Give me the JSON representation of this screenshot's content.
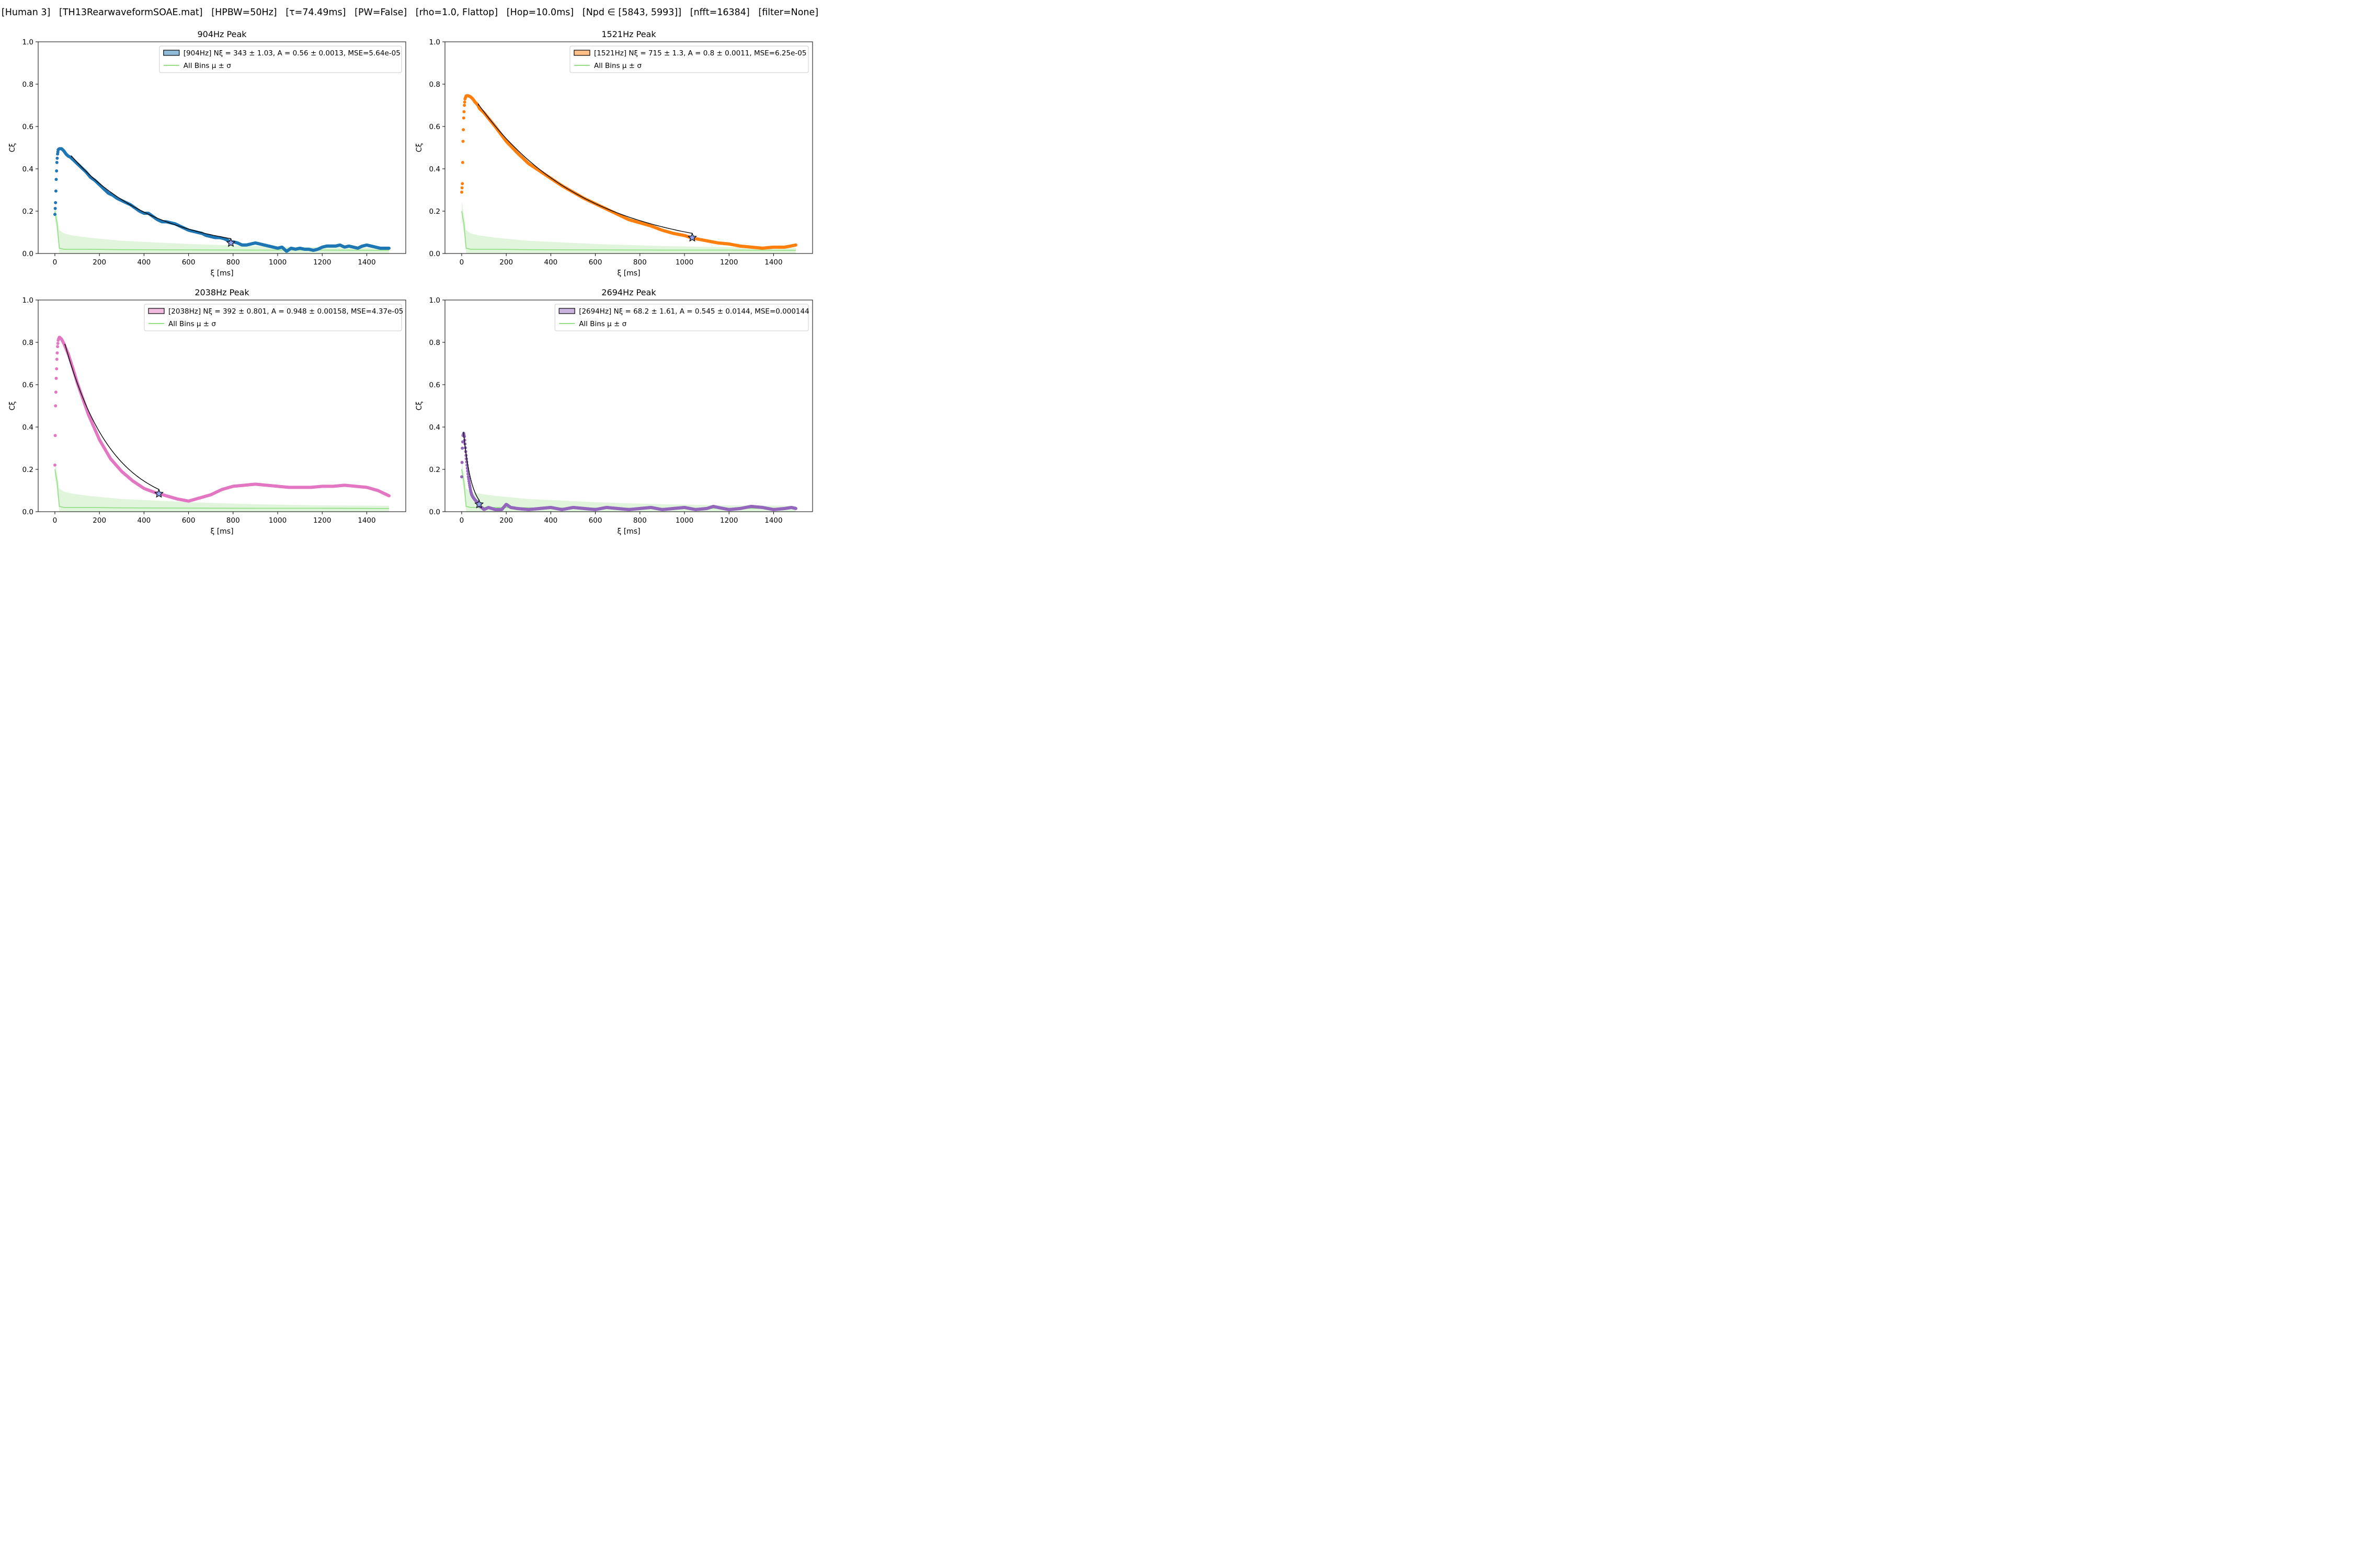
{
  "header": {
    "suptitle": "[Human 3]   [TH13RearwaveformSOAE.mat]   [HPBW=50Hz]   [τ=74.49ms]   [PW=False]   [rho=1.0, Flattop]   [Hop=10.0ms]   [Npd ∈ [5843, 5993]]   [nfft=16384]   [filter=None]"
  },
  "chart_data": [
    {
      "type": "scatter",
      "title": "904Hz Peak",
      "xlabel": "ξ [ms]",
      "ylabel": "Cξ",
      "xlim": [
        -75,
        1575
      ],
      "ylim": [
        0,
        1.0
      ],
      "xticks": [
        0,
        200,
        400,
        600,
        800,
        1000,
        1200,
        1400
      ],
      "yticks": [
        0.0,
        0.2,
        0.4,
        0.6,
        0.8,
        1.0
      ],
      "grid": false,
      "legend_placement": "top-right",
      "series": [
        {
          "name": "[904Hz] Nξ = 343 ± 1.03, A = 0.56 ± 0.0013, MSE=5.64e-05",
          "color": "#1f77b4",
          "fill_color": "#8fbbd9",
          "x": [
            0,
            3,
            6,
            9,
            12,
            15,
            20,
            30,
            40,
            50,
            60,
            70,
            80,
            100,
            120,
            140,
            160,
            180,
            200,
            220,
            240,
            260,
            280,
            300,
            320,
            340,
            360,
            380,
            400,
            420,
            440,
            460,
            480,
            500,
            520,
            540,
            560,
            580,
            600,
            620,
            640,
            660,
            680,
            700,
            720,
            740,
            760,
            780,
            790,
            800,
            820,
            840,
            860,
            880,
            900,
            920,
            940,
            960,
            980,
            1000,
            1020,
            1040,
            1060,
            1080,
            1100,
            1120,
            1140,
            1160,
            1180,
            1200,
            1220,
            1240,
            1260,
            1280,
            1300,
            1320,
            1340,
            1360,
            1380,
            1400,
            1420,
            1440,
            1460,
            1480,
            1500
          ],
          "values": [
            0.185,
            0.24,
            0.35,
            0.43,
            0.47,
            0.49,
            0.495,
            0.495,
            0.485,
            0.47,
            0.46,
            0.455,
            0.445,
            0.425,
            0.405,
            0.385,
            0.36,
            0.345,
            0.325,
            0.305,
            0.285,
            0.275,
            0.26,
            0.25,
            0.24,
            0.23,
            0.215,
            0.2,
            0.19,
            0.19,
            0.175,
            0.16,
            0.15,
            0.15,
            0.145,
            0.14,
            0.13,
            0.12,
            0.11,
            0.105,
            0.1,
            0.095,
            0.085,
            0.08,
            0.075,
            0.075,
            0.07,
            0.06,
            0.05,
            0.055,
            0.05,
            0.04,
            0.04,
            0.045,
            0.05,
            0.045,
            0.04,
            0.035,
            0.03,
            0.025,
            0.03,
            0.01,
            0.025,
            0.02,
            0.025,
            0.02,
            0.02,
            0.015,
            0.02,
            0.03,
            0.035,
            0.035,
            0.035,
            0.04,
            0.03,
            0.035,
            0.03,
            0.025,
            0.035,
            0.04,
            0.035,
            0.03,
            0.025,
            0.025,
            0.025
          ]
        },
        {
          "name": "All Bins μ ± σ",
          "color": "#98df8a",
          "x": [
            0,
            10,
            20,
            40,
            80,
            150,
            300,
            600,
            900,
            1200,
            1500
          ],
          "values": [
            0.2,
            0.14,
            0.025,
            0.02,
            0.02,
            0.02,
            0.018,
            0.017,
            0.016,
            0.016,
            0.015
          ],
          "upper": [
            0.245,
            0.18,
            0.11,
            0.095,
            0.085,
            0.075,
            0.06,
            0.045,
            0.035,
            0.03,
            0.028
          ],
          "lower": [
            0.16,
            0.1,
            0.0,
            0.0,
            0.0,
            0.0,
            0.0,
            0.0,
            0.0,
            0.0,
            0.0
          ]
        }
      ],
      "fit": {
        "x_start": 75,
        "x_end": 790,
        "amplitude": 0.56,
        "n_xi": 343,
        "tau_ms": 74.49
      },
      "star": {
        "x": 790,
        "y": 0.05
      }
    },
    {
      "type": "scatter",
      "title": "1521Hz Peak",
      "xlabel": "ξ [ms]",
      "ylabel": "Cξ",
      "xlim": [
        -75,
        1575
      ],
      "ylim": [
        0,
        1.0
      ],
      "xticks": [
        0,
        200,
        400,
        600,
        800,
        1000,
        1200,
        1400
      ],
      "yticks": [
        0.0,
        0.2,
        0.4,
        0.6,
        0.8,
        1.0
      ],
      "grid": false,
      "legend_placement": "top-right",
      "series": [
        {
          "name": "[1521Hz] Nξ = 715 ± 1.3, A = 0.8 ± 0.0011, MSE=6.25e-05",
          "color": "#ff7f0e",
          "fill_color": "#ffbf86",
          "x": [
            0,
            3,
            6,
            9,
            12,
            15,
            20,
            30,
            40,
            50,
            60,
            70,
            80,
            100,
            150,
            200,
            250,
            300,
            350,
            400,
            450,
            500,
            550,
            600,
            650,
            700,
            750,
            800,
            850,
            900,
            950,
            1000,
            1030,
            1050,
            1100,
            1150,
            1200,
            1250,
            1300,
            1350,
            1400,
            1450,
            1500
          ],
          "values": [
            0.29,
            0.33,
            0.53,
            0.64,
            0.7,
            0.73,
            0.745,
            0.745,
            0.74,
            0.73,
            0.715,
            0.705,
            0.685,
            0.665,
            0.6,
            0.53,
            0.475,
            0.425,
            0.39,
            0.355,
            0.32,
            0.29,
            0.26,
            0.235,
            0.21,
            0.185,
            0.16,
            0.145,
            0.13,
            0.11,
            0.095,
            0.085,
            0.075,
            0.07,
            0.06,
            0.05,
            0.045,
            0.035,
            0.03,
            0.025,
            0.03,
            0.03,
            0.04
          ]
        },
        {
          "name": "All Bins μ ± σ",
          "color": "#98df8a",
          "x": [
            0,
            10,
            20,
            40,
            80,
            150,
            300,
            600,
            900,
            1200,
            1500
          ],
          "values": [
            0.2,
            0.14,
            0.025,
            0.02,
            0.02,
            0.02,
            0.018,
            0.017,
            0.016,
            0.016,
            0.015
          ],
          "upper": [
            0.245,
            0.18,
            0.11,
            0.095,
            0.085,
            0.075,
            0.06,
            0.045,
            0.035,
            0.03,
            0.028
          ],
          "lower": [
            0.16,
            0.1,
            0.0,
            0.0,
            0.0,
            0.0,
            0.0,
            0.0,
            0.0,
            0.0,
            0.0
          ]
        }
      ],
      "fit": {
        "x_start": 75,
        "x_end": 1035,
        "amplitude": 0.8,
        "n_xi": 715,
        "tau_ms": 74.49
      },
      "star": {
        "x": 1035,
        "y": 0.075
      }
    },
    {
      "type": "scatter",
      "title": "2038Hz Peak",
      "xlabel": "ξ [ms]",
      "ylabel": "Cξ",
      "xlim": [
        -75,
        1575
      ],
      "ylim": [
        0,
        1.0
      ],
      "xticks": [
        0,
        200,
        400,
        600,
        800,
        1000,
        1200,
        1400
      ],
      "yticks": [
        0.0,
        0.2,
        0.4,
        0.6,
        0.8,
        1.0
      ],
      "grid": false,
      "legend_placement": "top-right",
      "series": [
        {
          "name": "[2038Hz] Nξ = 392 ± 0.801, A = 0.948 ± 0.00158, MSE=4.37e-05",
          "color": "#e377c2",
          "fill_color": "#f1bbe0",
          "x": [
            0,
            3,
            6,
            9,
            12,
            15,
            20,
            30,
            40,
            50,
            60,
            80,
            100,
            150,
            200,
            250,
            300,
            350,
            400,
            450,
            470,
            500,
            550,
            600,
            650,
            700,
            750,
            800,
            850,
            900,
            950,
            1000,
            1050,
            1100,
            1150,
            1200,
            1250,
            1300,
            1350,
            1400,
            1450,
            1500
          ],
          "values": [
            0.22,
            0.5,
            0.63,
            0.72,
            0.78,
            0.81,
            0.825,
            0.815,
            0.795,
            0.77,
            0.745,
            0.68,
            0.61,
            0.46,
            0.34,
            0.25,
            0.19,
            0.145,
            0.11,
            0.09,
            0.085,
            0.075,
            0.06,
            0.05,
            0.065,
            0.08,
            0.105,
            0.12,
            0.125,
            0.13,
            0.125,
            0.12,
            0.115,
            0.115,
            0.115,
            0.12,
            0.12,
            0.125,
            0.12,
            0.115,
            0.1,
            0.075
          ]
        },
        {
          "name": "All Bins μ ± σ",
          "color": "#98df8a",
          "x": [
            0,
            10,
            20,
            40,
            80,
            150,
            300,
            600,
            900,
            1200,
            1500
          ],
          "values": [
            0.2,
            0.14,
            0.025,
            0.02,
            0.02,
            0.02,
            0.018,
            0.017,
            0.016,
            0.016,
            0.015
          ],
          "upper": [
            0.245,
            0.18,
            0.11,
            0.095,
            0.085,
            0.075,
            0.06,
            0.045,
            0.035,
            0.03,
            0.028
          ],
          "lower": [
            0.16,
            0.1,
            0.0,
            0.0,
            0.0,
            0.0,
            0.0,
            0.0,
            0.0,
            0.0,
            0.0
          ]
        }
      ],
      "fit": {
        "x_start": 45,
        "x_end": 467,
        "amplitude": 0.948,
        "n_xi": 392,
        "tau_ms": 74.49
      },
      "star": {
        "x": 467,
        "y": 0.085
      }
    },
    {
      "type": "scatter",
      "title": "2694Hz Peak",
      "xlabel": "ξ [ms]",
      "ylabel": "Cξ",
      "xlim": [
        -75,
        1575
      ],
      "ylim": [
        0,
        1.0
      ],
      "xticks": [
        0,
        200,
        400,
        600,
        800,
        1000,
        1200,
        1400
      ],
      "yticks": [
        0.0,
        0.2,
        0.4,
        0.6,
        0.8,
        1.0
      ],
      "grid": false,
      "legend_placement": "top-right",
      "series": [
        {
          "name": "[2694Hz] Nξ = 68.2 ± 1.61, A = 0.545 ± 0.0144, MSE=0.000144",
          "color": "#9467bd",
          "fill_color": "#c9b3de",
          "x": [
            0,
            3,
            6,
            9,
            12,
            15,
            20,
            25,
            30,
            35,
            40,
            45,
            50,
            60,
            70,
            75,
            80,
            90,
            100,
            120,
            150,
            180,
            200,
            220,
            250,
            300,
            350,
            400,
            450,
            500,
            550,
            600,
            650,
            700,
            750,
            800,
            850,
            900,
            950,
            1000,
            1050,
            1100,
            1130,
            1150,
            1200,
            1250,
            1300,
            1350,
            1400,
            1450,
            1480,
            1500
          ],
          "values": [
            0.165,
            0.3,
            0.36,
            0.37,
            0.355,
            0.32,
            0.26,
            0.21,
            0.165,
            0.13,
            0.1,
            0.08,
            0.07,
            0.055,
            0.045,
            0.035,
            0.025,
            0.02,
            0.01,
            0.02,
            0.01,
            0.01,
            0.035,
            0.02,
            0.015,
            0.01,
            0.015,
            0.02,
            0.01,
            0.02,
            0.015,
            0.01,
            0.02,
            0.015,
            0.01,
            0.015,
            0.02,
            0.01,
            0.015,
            0.02,
            0.01,
            0.015,
            0.025,
            0.02,
            0.01,
            0.015,
            0.025,
            0.02,
            0.01,
            0.015,
            0.02,
            0.015
          ]
        },
        {
          "name": "All Bins μ ± σ",
          "color": "#98df8a",
          "x": [
            0,
            10,
            20,
            40,
            80,
            150,
            300,
            600,
            900,
            1200,
            1500
          ],
          "values": [
            0.2,
            0.14,
            0.025,
            0.02,
            0.02,
            0.02,
            0.018,
            0.017,
            0.016,
            0.016,
            0.015
          ],
          "upper": [
            0.245,
            0.18,
            0.11,
            0.095,
            0.085,
            0.075,
            0.06,
            0.045,
            0.035,
            0.03,
            0.028
          ],
          "lower": [
            0.16,
            0.1,
            0.0,
            0.0,
            0.0,
            0.0,
            0.0,
            0.0,
            0.0,
            0.0,
            0.0
          ]
        }
      ],
      "fit": {
        "x_start": 8,
        "x_end": 78,
        "amplitude": 0.545,
        "n_xi": 68.2,
        "tau_ms": 74.49
      },
      "star": {
        "x": 78,
        "y": 0.035
      }
    }
  ]
}
